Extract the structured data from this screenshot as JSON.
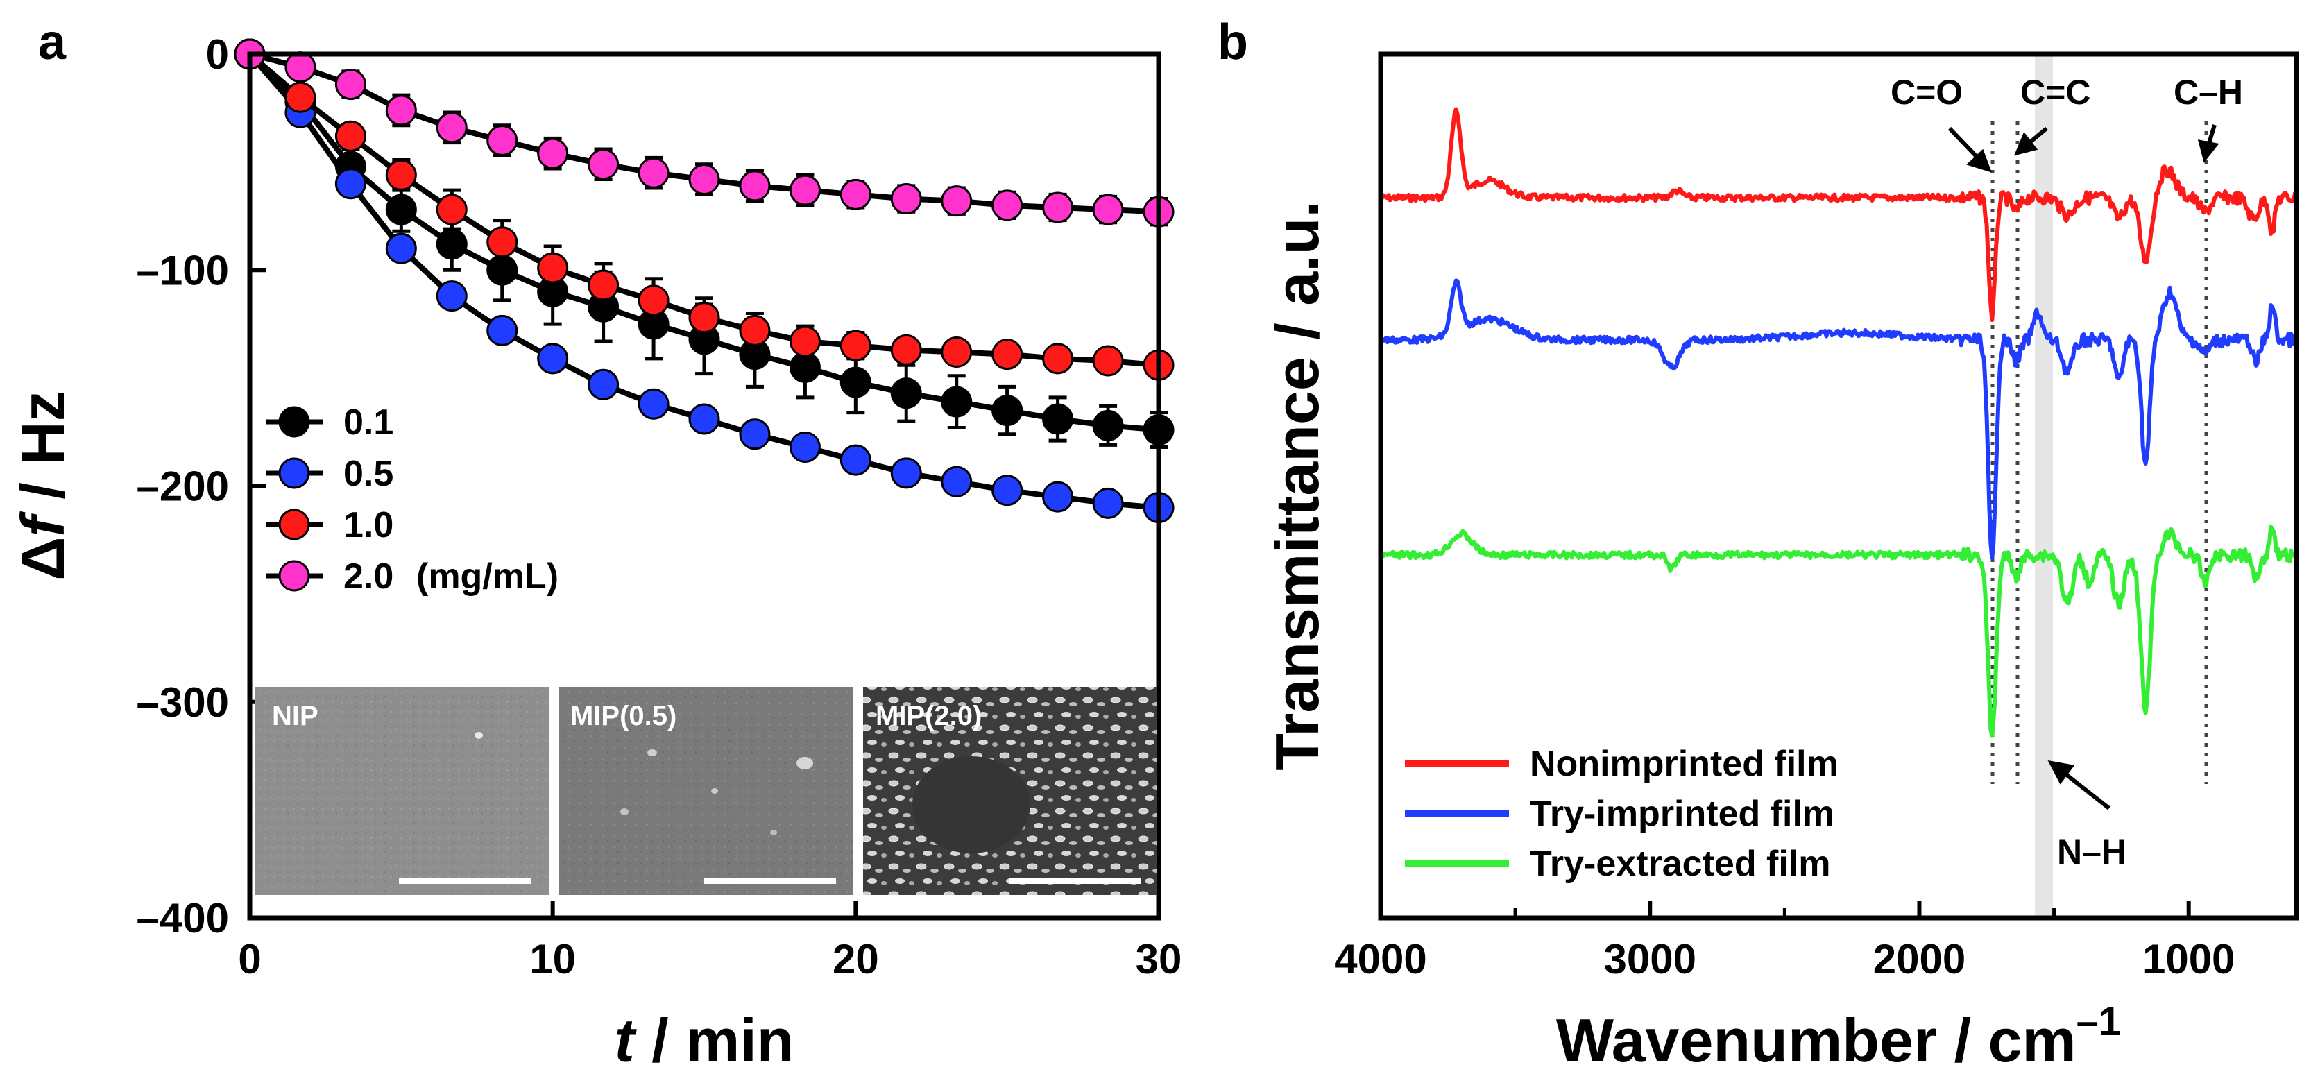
{
  "chart_data": [
    {
      "panel": "a",
      "type": "line",
      "xlabel_var": "t",
      "xlabel_unit": " / min",
      "ylabel_delta": "Δ",
      "ylabel_var": "f",
      "ylabel_unit": " / Hz",
      "xlim": [
        0,
        30
      ],
      "ylim": [
        -400,
        0
      ],
      "xticks": [
        "0",
        "10",
        "20",
        "30"
      ],
      "yticks": [
        "0",
        "–100",
        "–200",
        "–300",
        "–400"
      ],
      "x": [
        0,
        1.67,
        3.33,
        5,
        6.67,
        8.33,
        10,
        11.67,
        13.33,
        15,
        16.67,
        18.33,
        20,
        21.67,
        23.33,
        25,
        26.67,
        28.33,
        30
      ],
      "legend_title_suffix": "(mg/mL)",
      "series": [
        {
          "name": "0.1",
          "color": "#000000",
          "values": [
            0,
            -22,
            -52,
            -72,
            -88,
            -100,
            -110,
            -117,
            -125,
            -132,
            -139,
            -145,
            -152,
            -157,
            -161,
            -165,
            -169,
            -172,
            -174
          ],
          "error": [
            0,
            4,
            8,
            10,
            12,
            14,
            15,
            16,
            16,
            16,
            15,
            14,
            14,
            13,
            12,
            11,
            10,
            9,
            8
          ]
        },
        {
          "name": "0.5",
          "color": "#1f3cff",
          "values": [
            0,
            -27,
            -60,
            -90,
            -112,
            -128,
            -141,
            -153,
            -162,
            -169,
            -176,
            -182,
            -188,
            -194,
            -198,
            -202,
            -205,
            -208,
            -210
          ],
          "error": [
            0,
            3,
            4,
            5,
            5,
            5,
            5,
            5,
            5,
            5,
            5,
            5,
            5,
            5,
            5,
            5,
            5,
            5,
            5
          ]
        },
        {
          "name": "1.0",
          "color": "#ff1a1a",
          "values": [
            0,
            -20,
            -38,
            -56,
            -72,
            -87,
            -99,
            -107,
            -114,
            -122,
            -128,
            -133,
            -135,
            -137,
            -138,
            -139,
            -141,
            -142,
            -144
          ],
          "error": [
            0,
            3,
            5,
            7,
            9,
            10,
            10,
            10,
            10,
            9,
            8,
            7,
            6,
            5,
            5,
            5,
            5,
            5,
            5
          ]
        },
        {
          "name": "2.0",
          "color": "#ff33cc",
          "values": [
            0,
            -6,
            -14,
            -26,
            -34,
            -40,
            -46,
            -51,
            -55,
            -58,
            -61,
            -63,
            -65,
            -67,
            -68,
            -70,
            -71,
            -72,
            -73
          ],
          "error": [
            0,
            4,
            6,
            7,
            7,
            7,
            7,
            7,
            7,
            7,
            7,
            7,
            6,
            6,
            6,
            6,
            6,
            6,
            6
          ]
        }
      ],
      "insets": [
        "NIP",
        "MIP(0.5)",
        "MIP(2.0)"
      ]
    },
    {
      "panel": "b",
      "type": "line",
      "xlabel": "Wavenumber / cm",
      "xlabel_sup": "–1",
      "ylabel": "Transmittance / a.u.",
      "xlim": [
        4000,
        600
      ],
      "xticks": [
        "4000",
        "3000",
        "2000",
        "1000"
      ],
      "series": [
        {
          "name": "Nonimprinted film",
          "color": "#ff1a1a"
        },
        {
          "name": "Try-imprinted film",
          "color": "#1f3cff"
        },
        {
          "name": "Try-extracted film",
          "color": "#33ee33"
        }
      ],
      "annotations": [
        {
          "text": "C=O",
          "wavenumber": 1730
        },
        {
          "text": "C=C",
          "wavenumber": 1640
        },
        {
          "text": "C–H",
          "wavenumber": 940
        },
        {
          "text": "N–H",
          "wavenumber": 1540
        }
      ]
    }
  ]
}
